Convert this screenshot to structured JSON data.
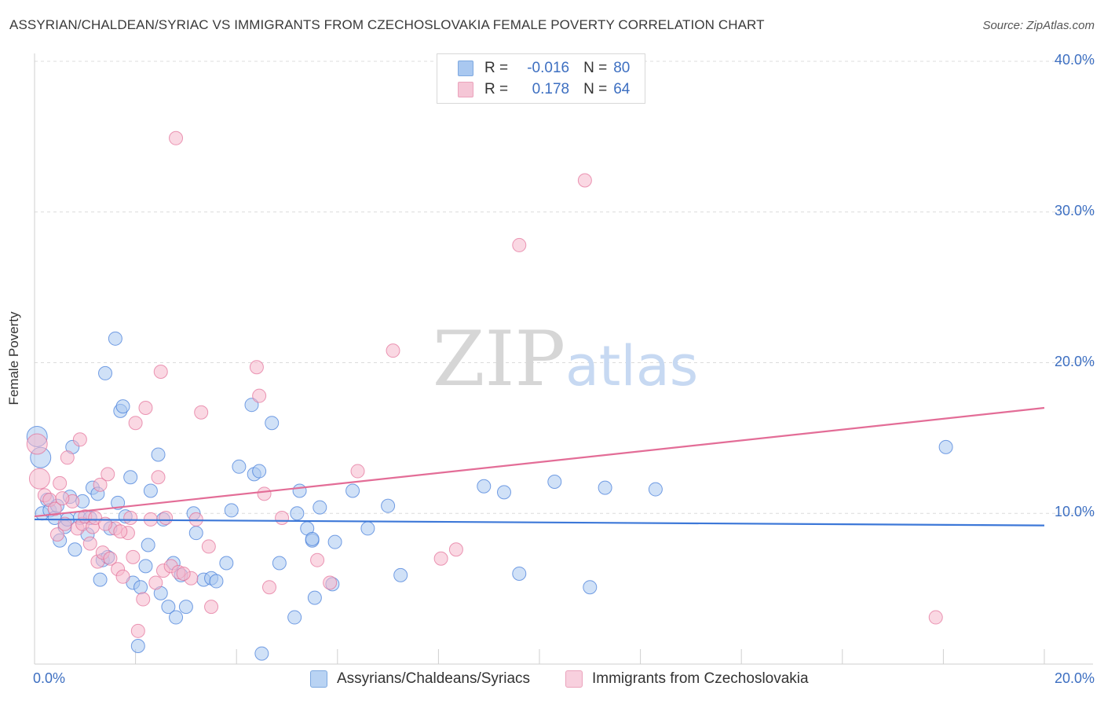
{
  "title": "ASSYRIAN/CHALDEAN/SYRIAC VS IMMIGRANTS FROM CZECHOSLOVAKIA FEMALE POVERTY CORRELATION CHART",
  "source": "Source: ZipAtlas.com",
  "watermark": "ZIPatlas",
  "legend": {
    "rows": [
      {
        "r_label": "R =",
        "r_value": "-0.016",
        "n_label": "N =",
        "n_value": "80",
        "color": "#a9c8f0"
      },
      {
        "r_label": "R =",
        "r_value": "0.178",
        "n_label": "N =",
        "n_value": "64",
        "color": "#f5b8cc"
      }
    ]
  },
  "bottom_legend": [
    {
      "label": "Assyrians/Chaldeans/Syriacs",
      "color": "#a9c8f0"
    },
    {
      "label": "Immigrants from Czechoslovakia",
      "color": "#f5b8cc"
    }
  ],
  "chart_data": {
    "type": "scatter",
    "xlabel": "",
    "ylabel": "Female Poverty",
    "xlim": [
      0,
      20
    ],
    "ylim": [
      0,
      40
    ],
    "x_tick_labels": [
      "0.0%",
      "20.0%"
    ],
    "y_tick_labels": [
      "10.0%",
      "20.0%",
      "30.0%",
      "40.0%"
    ],
    "y_ticks": [
      10,
      20,
      30,
      40
    ],
    "grid": true,
    "legend_position": "top-center",
    "series": [
      {
        "name": "Assyrians/Chaldeans/Syriacs",
        "color": "#3d78d8",
        "fill": "#a9c8f0",
        "trend": {
          "x": [
            0,
            20
          ],
          "y": [
            9.6,
            9.2
          ]
        },
        "points": [
          [
            0.05,
            15.1
          ],
          [
            0.12,
            13.7
          ],
          [
            0.15,
            10.0
          ],
          [
            0.25,
            10.9
          ],
          [
            0.3,
            10.2
          ],
          [
            0.4,
            9.7
          ],
          [
            0.45,
            10.5
          ],
          [
            0.5,
            8.2
          ],
          [
            0.6,
            9.1
          ],
          [
            0.65,
            9.6
          ],
          [
            0.7,
            11.1
          ],
          [
            0.75,
            14.4
          ],
          [
            0.8,
            7.6
          ],
          [
            0.9,
            9.7
          ],
          [
            0.95,
            10.8
          ],
          [
            1.05,
            8.6
          ],
          [
            1.1,
            9.7
          ],
          [
            1.15,
            11.7
          ],
          [
            1.25,
            11.3
          ],
          [
            1.3,
            5.6
          ],
          [
            1.35,
            6.9
          ],
          [
            1.4,
            19.3
          ],
          [
            1.45,
            7.1
          ],
          [
            1.5,
            9.0
          ],
          [
            1.6,
            21.6
          ],
          [
            1.65,
            10.7
          ],
          [
            1.7,
            16.8
          ],
          [
            1.75,
            17.1
          ],
          [
            1.8,
            9.8
          ],
          [
            1.9,
            12.4
          ],
          [
            1.95,
            5.4
          ],
          [
            2.1,
            5.1
          ],
          [
            2.05,
            1.2
          ],
          [
            2.2,
            6.5
          ],
          [
            2.25,
            7.9
          ],
          [
            2.3,
            11.5
          ],
          [
            2.45,
            13.9
          ],
          [
            2.5,
            4.7
          ],
          [
            2.55,
            9.6
          ],
          [
            2.65,
            3.8
          ],
          [
            2.75,
            6.7
          ],
          [
            2.8,
            3.1
          ],
          [
            2.9,
            5.9
          ],
          [
            3.0,
            3.8
          ],
          [
            3.15,
            10.0
          ],
          [
            3.2,
            8.7
          ],
          [
            3.35,
            5.6
          ],
          [
            3.5,
            5.7
          ],
          [
            3.6,
            5.5
          ],
          [
            3.8,
            6.7
          ],
          [
            3.9,
            10.2
          ],
          [
            4.05,
            13.1
          ],
          [
            4.3,
            17.2
          ],
          [
            4.35,
            12.6
          ],
          [
            4.45,
            12.8
          ],
          [
            4.5,
            0.7
          ],
          [
            4.7,
            16.0
          ],
          [
            4.85,
            6.7
          ],
          [
            5.15,
            3.1
          ],
          [
            5.2,
            10.0
          ],
          [
            5.25,
            11.5
          ],
          [
            5.4,
            9.0
          ],
          [
            5.5,
            8.2
          ],
          [
            5.55,
            4.4
          ],
          [
            5.65,
            10.4
          ],
          [
            5.9,
            5.3
          ],
          [
            5.95,
            8.1
          ],
          [
            6.3,
            11.5
          ],
          [
            6.6,
            9.0
          ],
          [
            7.0,
            10.5
          ],
          [
            7.25,
            5.9
          ],
          [
            8.9,
            11.8
          ],
          [
            9.3,
            11.4
          ],
          [
            9.6,
            6.0
          ],
          [
            10.3,
            12.1
          ],
          [
            11.0,
            5.1
          ],
          [
            11.3,
            11.7
          ],
          [
            12.3,
            11.6
          ],
          [
            18.05,
            14.4
          ],
          [
            5.5,
            8.3
          ]
        ]
      },
      {
        "name": "Immigrants from Czechoslovakia",
        "color": "#e36d97",
        "fill": "#f5b8cc",
        "trend": {
          "x": [
            0,
            20
          ],
          "y": [
            9.8,
            17.0
          ]
        },
        "points": [
          [
            0.05,
            14.6
          ],
          [
            0.1,
            12.3
          ],
          [
            0.2,
            11.2
          ],
          [
            0.3,
            10.9
          ],
          [
            0.4,
            10.3
          ],
          [
            0.45,
            8.6
          ],
          [
            0.5,
            12.0
          ],
          [
            0.6,
            9.3
          ],
          [
            0.65,
            13.7
          ],
          [
            0.75,
            10.8
          ],
          [
            0.85,
            9.0
          ],
          [
            0.9,
            14.9
          ],
          [
            0.95,
            9.3
          ],
          [
            1.0,
            9.8
          ],
          [
            1.1,
            8.0
          ],
          [
            1.15,
            9.1
          ],
          [
            1.2,
            9.7
          ],
          [
            1.25,
            6.8
          ],
          [
            1.3,
            11.9
          ],
          [
            1.35,
            7.4
          ],
          [
            1.45,
            12.6
          ],
          [
            1.5,
            7.0
          ],
          [
            1.6,
            9.0
          ],
          [
            1.65,
            6.3
          ],
          [
            1.75,
            5.8
          ],
          [
            1.85,
            8.7
          ],
          [
            1.9,
            9.7
          ],
          [
            1.95,
            7.1
          ],
          [
            2.0,
            16.0
          ],
          [
            2.05,
            2.2
          ],
          [
            2.15,
            4.3
          ],
          [
            2.2,
            17.0
          ],
          [
            2.3,
            9.6
          ],
          [
            2.4,
            5.4
          ],
          [
            2.45,
            12.4
          ],
          [
            2.5,
            19.4
          ],
          [
            2.55,
            6.2
          ],
          [
            2.6,
            9.7
          ],
          [
            2.7,
            6.5
          ],
          [
            2.8,
            34.9
          ],
          [
            2.85,
            6.1
          ],
          [
            3.1,
            5.7
          ],
          [
            3.2,
            9.6
          ],
          [
            3.3,
            16.7
          ],
          [
            3.45,
            7.8
          ],
          [
            3.5,
            3.8
          ],
          [
            4.4,
            19.7
          ],
          [
            4.45,
            17.8
          ],
          [
            4.55,
            11.3
          ],
          [
            4.65,
            5.1
          ],
          [
            5.6,
            6.9
          ],
          [
            5.85,
            5.4
          ],
          [
            6.4,
            12.8
          ],
          [
            7.1,
            20.8
          ],
          [
            8.05,
            7.0
          ],
          [
            8.35,
            7.6
          ],
          [
            9.6,
            27.8
          ],
          [
            10.9,
            32.1
          ],
          [
            17.85,
            3.1
          ],
          [
            1.7,
            8.8
          ],
          [
            2.95,
            6.0
          ],
          [
            1.4,
            9.3
          ],
          [
            0.55,
            11.0
          ],
          [
            4.9,
            9.7
          ]
        ]
      }
    ]
  }
}
